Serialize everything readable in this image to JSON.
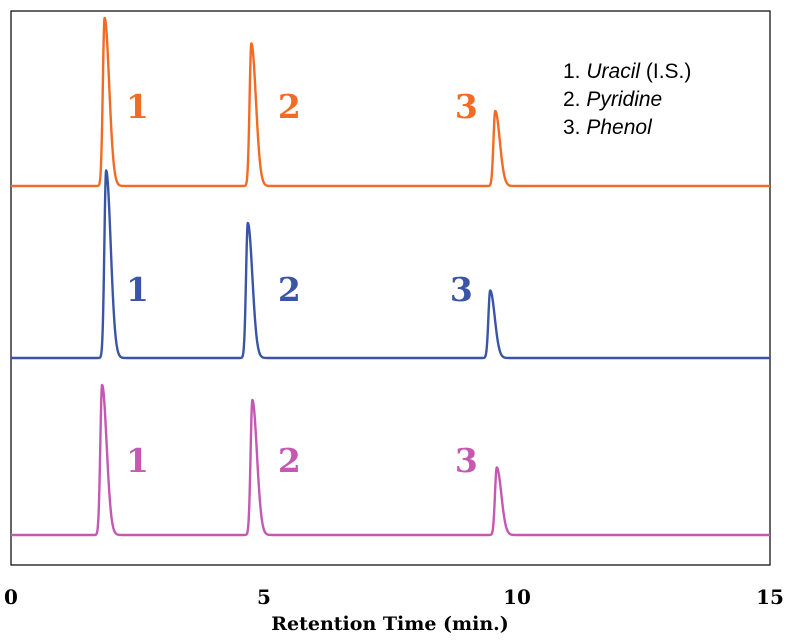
{
  "chart_data": {
    "type": "line",
    "title": "",
    "xlabel": "Retention Time (min.)",
    "ylabel": "",
    "xlim": [
      0,
      15
    ],
    "x_ticks": [
      "0",
      "5",
      "10",
      "15"
    ],
    "grid": false,
    "legend_position": "top-right",
    "legend": [
      {
        "number": "1. ",
        "name": "Uracil",
        "suffix": " (I.S.)"
      },
      {
        "number": "2. ",
        "name": "Pyridine",
        "suffix": ""
      },
      {
        "number": "3. ",
        "name": "Phenol",
        "suffix": ""
      }
    ],
    "peak_shape": {
      "rise_width_min": 0.035,
      "tail_width_min": 0.09
    },
    "series": [
      {
        "color": "#f26b25",
        "peaks": [
          {
            "rt": 1.85,
            "height": 1.12
          },
          {
            "rt": 4.75,
            "height": 0.95
          },
          {
            "rt": 9.57,
            "height": 0.5
          }
        ],
        "peak_labels": [
          {
            "text": "1",
            "x": 2.5
          },
          {
            "text": "2",
            "x": 5.5
          },
          {
            "text": "3",
            "x": 9.0
          }
        ]
      },
      {
        "color": "#3b55a6",
        "peaks": [
          {
            "rt": 1.88,
            "height": 1.25
          },
          {
            "rt": 4.68,
            "height": 0.9
          },
          {
            "rt": 9.47,
            "height": 0.45
          }
        ],
        "peak_labels": [
          {
            "text": "1",
            "x": 2.5
          },
          {
            "text": "2",
            "x": 5.5
          },
          {
            "text": "3",
            "x": 8.9
          }
        ]
      },
      {
        "color": "#c458b3",
        "peaks": [
          {
            "rt": 1.8,
            "height": 1.0
          },
          {
            "rt": 4.77,
            "height": 0.9
          },
          {
            "rt": 9.6,
            "height": 0.45
          }
        ],
        "peak_labels": [
          {
            "text": "1",
            "x": 2.5
          },
          {
            "text": "2",
            "x": 5.5
          },
          {
            "text": "3",
            "x": 9.0
          }
        ]
      }
    ]
  }
}
